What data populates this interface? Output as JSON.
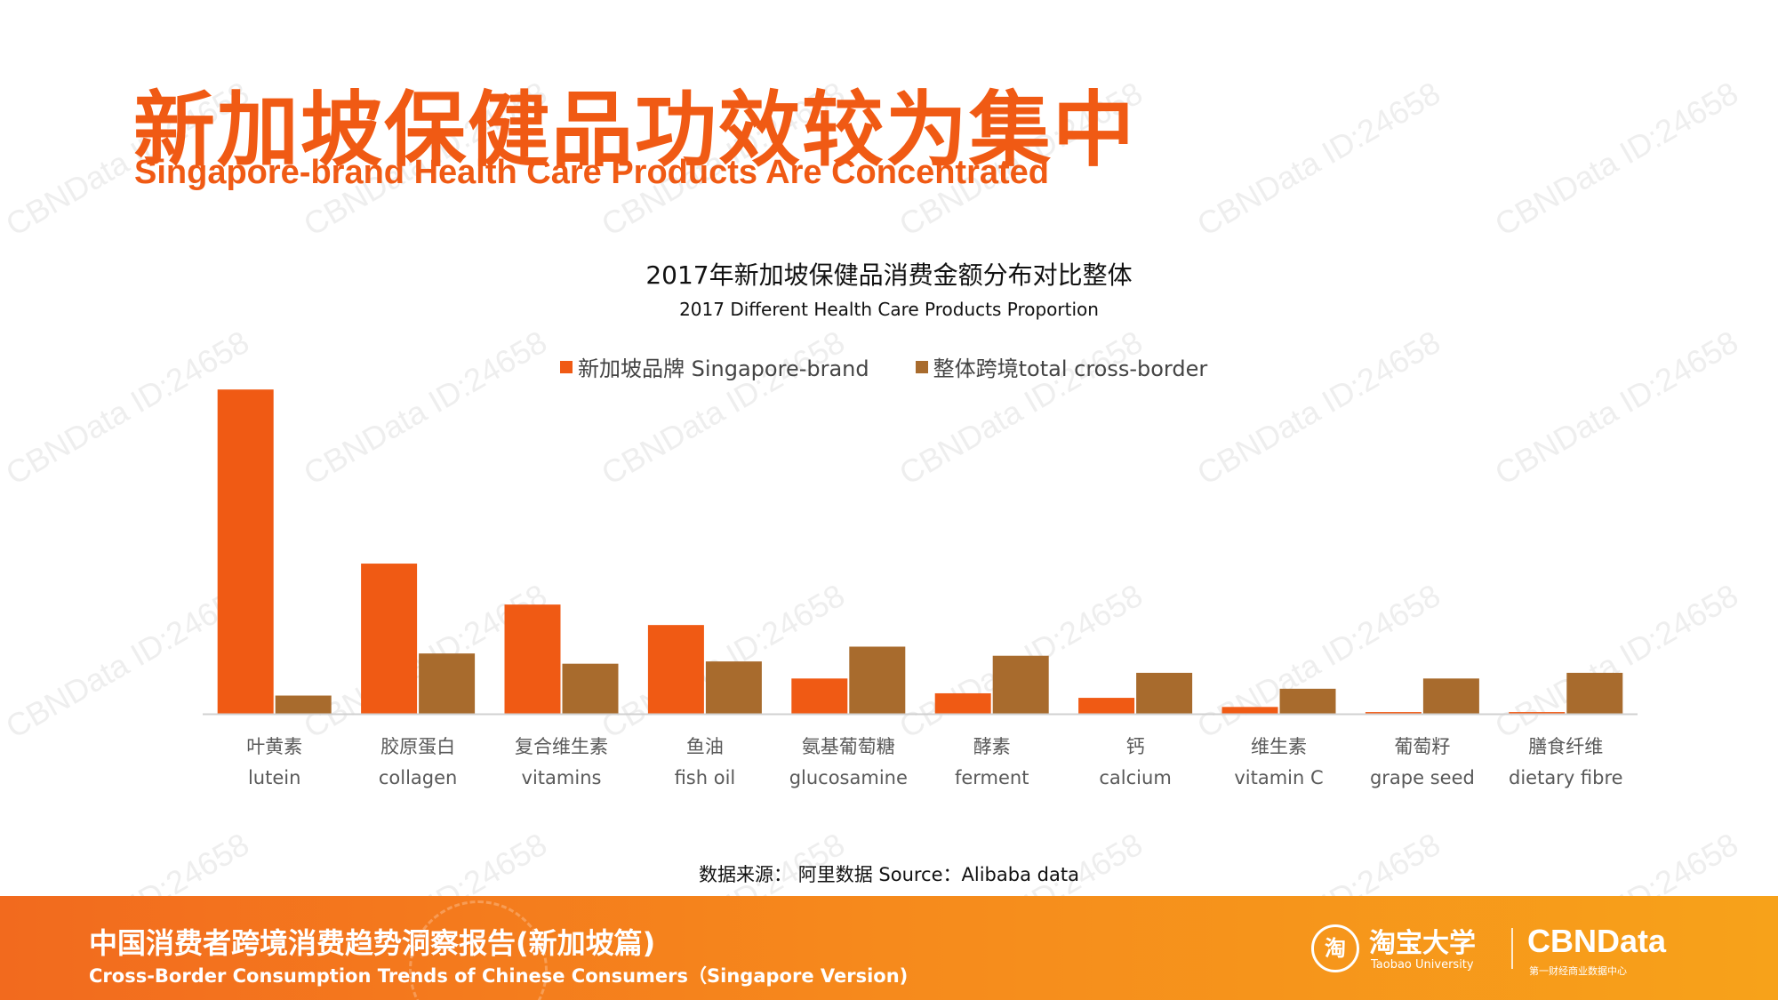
{
  "header": {
    "title_cn": "新加坡保健品功效较为集中",
    "title_en": "Singapore-brand Health Care Products Are Concentrated"
  },
  "colors": {
    "accent": "#f05a14",
    "series_singapore": "#f05a14",
    "series_crossborder": "#a86b2d"
  },
  "chart_data": {
    "type": "bar",
    "title": "2017年新加坡保健品消费金额分布对比整体",
    "subtitle": "2017 Different Health Care Products Proportion",
    "categories": [
      {
        "cn": "叶黄素",
        "en": "lutein"
      },
      {
        "cn": "胶原蛋白",
        "en": "collagen"
      },
      {
        "cn": "复合维生素",
        "en": "vitamins"
      },
      {
        "cn": "鱼油",
        "en": "fish oil"
      },
      {
        "cn": "氨基葡萄糖",
        "en": "glucosamine"
      },
      {
        "cn": "酵素",
        "en": "ferment"
      },
      {
        "cn": "钙",
        "en": "calcium"
      },
      {
        "cn": "维生素",
        "en": "vitamin C"
      },
      {
        "cn": "葡萄籽",
        "en": "grape seed"
      },
      {
        "cn": "膳食纤维",
        "en": "dietary fibre"
      }
    ],
    "series": [
      {
        "name": "新加坡品牌 Singapore-brand",
        "values": [
          28.5,
          13.2,
          9.6,
          7.8,
          3.1,
          1.8,
          1.4,
          0.6,
          0.15,
          0.15
        ]
      },
      {
        "name": "整体跨境total cross-border",
        "values": [
          1.6,
          5.3,
          4.4,
          4.6,
          5.9,
          5.1,
          3.6,
          2.2,
          3.1,
          3.6
        ]
      }
    ],
    "ylim": [
      0,
      30
    ],
    "grid": false,
    "legend_position": "top-center",
    "axis_labels_visible": false
  },
  "source": "数据来源： 阿里数据 Source：Alibaba data",
  "footer": {
    "title_cn": "中国消费者跨境消费趋势洞察报告(新加坡篇)",
    "title_en": "Cross-Border Consumption Trends of Chinese Consumers（Singapore Version)",
    "taobao_icon": "淘",
    "taobao_cn": "淘宝大学",
    "taobao_en": "Taobao University",
    "cbn_logo": "CBNData",
    "cbn_tag": "第一财经商业数据中心"
  },
  "watermark": "CBNData ID:24658"
}
